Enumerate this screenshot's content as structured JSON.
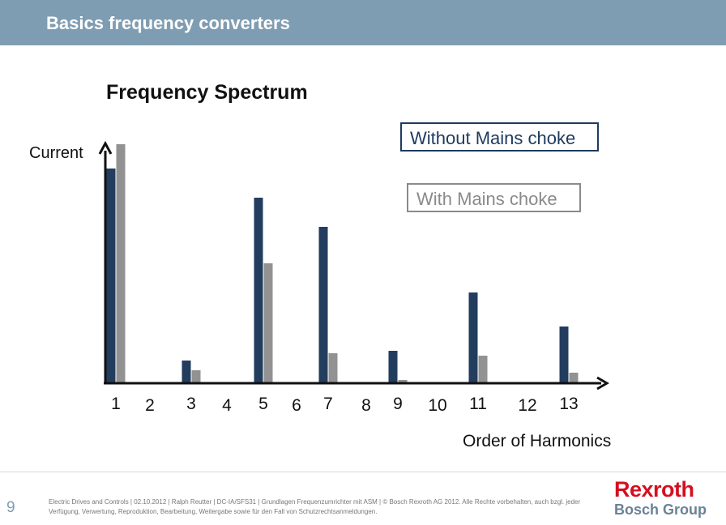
{
  "header": {
    "title": "Basics frequency converters"
  },
  "chart_data": {
    "type": "bar",
    "title": "Frequency Spectrum",
    "xlabel": "Order of Harmonics",
    "ylabel": "Current",
    "categories": [
      "1",
      "2",
      "3",
      "4",
      "5",
      "6",
      "7",
      "8",
      "9",
      "10",
      "11",
      "12",
      "13"
    ],
    "series": [
      {
        "name": "Without Mains choke",
        "color": "#233d5e",
        "values": [
          0.88,
          0,
          0.09,
          0,
          0.76,
          0,
          0.64,
          0,
          0.13,
          0,
          0.37,
          0,
          0.23
        ]
      },
      {
        "name": "With Mains choke",
        "color": "#929292",
        "values": [
          0.98,
          0,
          0.05,
          0,
          0.49,
          0,
          0.12,
          0,
          0.01,
          0,
          0.11,
          0,
          0.04
        ]
      }
    ],
    "ylim": [
      0,
      1
    ],
    "grid": false,
    "legend": "top-right"
  },
  "footer": {
    "page_number": "9",
    "text": "Electric Drives and Controls | 02.10.2012 | Ralph Reutter | DC-IA/SFS31 | Grundlagen Frequenzumrichter mit ASM | © Bosch Rexroth AG 2012. Alle Rechte vorbehalten, auch bzgl. jeder Verfügung, Verwertung, Reproduktion, Bearbeitung, Weitergabe sowie für den Fall von Schutzrechtsanmeldungen.",
    "logo_main": "Rexroth",
    "logo_sub": "Bosch Group"
  }
}
